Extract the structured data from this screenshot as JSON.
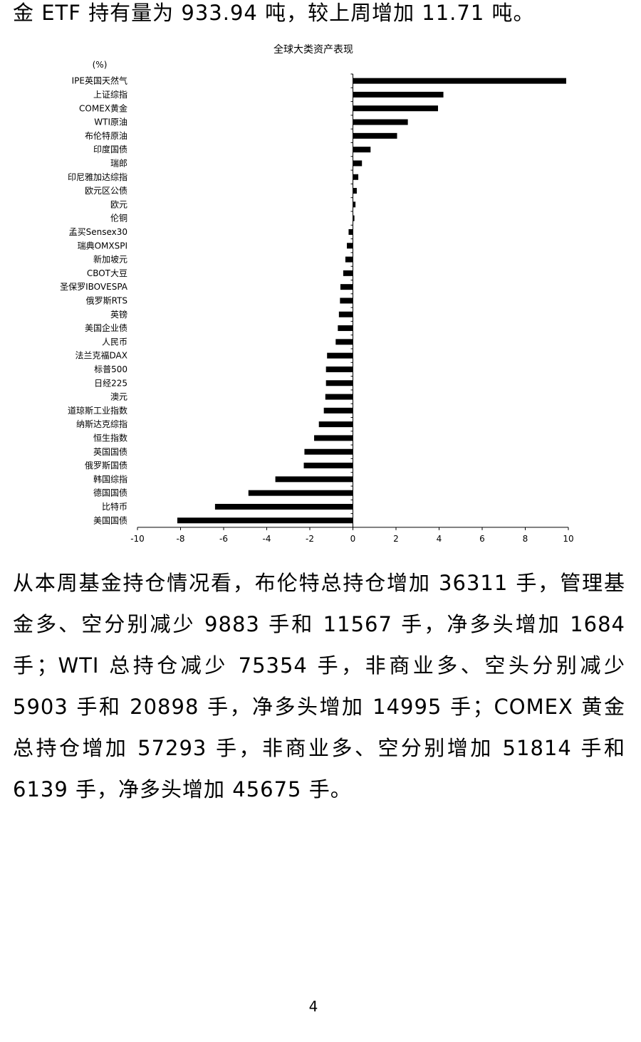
{
  "intro_line": "金 ETF 持有量为 933.94 吨，较上周增加 11.71 吨。",
  "paragraph": "从本周基金持仓情况看，布伦特总持仓增加 36311 手，管理基金多、空分别减少 9883 手和 11567 手，净多头增加 1684 手；WTI 总持仓减少 75354 手，非商业多、空头分别减少 5903 手和 20898 手，净多头增加 14995 手；COMEX 黄金总持仓增加 57293 手，非商业多、空分别增加 51814 手和 6139 手，净多头增加 45675 手。",
  "page_number": "4",
  "chart_data": {
    "type": "bar",
    "orientation": "horizontal",
    "title": "全球大类资产表现",
    "unit_label": "(%)",
    "xlim": [
      -10,
      10
    ],
    "xticks": [
      -10,
      -8,
      -6,
      -4,
      -2,
      0,
      2,
      4,
      6,
      8,
      10
    ],
    "bar_color": "#000000",
    "categories": [
      "IPE英国天然气",
      "上证综指",
      "COMEX黄金",
      "WTI原油",
      "布伦特原油",
      "印度国债",
      "瑞郎",
      "印尼雅加达综指",
      "欧元区公债",
      "欧元",
      "伦铜",
      "孟买Sensex30",
      "瑞典OMXSPI",
      "新加坡元",
      "CBOT大豆",
      "圣保罗IBOVESPA",
      "俄罗斯RTS",
      "英镑",
      "美国企业债",
      "人民币",
      "法兰克福DAX",
      "标普500",
      "日经225",
      "澳元",
      "道琼斯工业指数",
      "纳斯达克综指",
      "恒生指数",
      "英国国债",
      "俄罗斯国债",
      "韩国综指",
      "德国国债",
      "比特币",
      "美国国债"
    ],
    "values": [
      9.9,
      4.2,
      3.95,
      2.55,
      2.05,
      0.82,
      0.42,
      0.25,
      0.18,
      0.12,
      0.07,
      -0.2,
      -0.28,
      -0.35,
      -0.45,
      -0.58,
      -0.6,
      -0.65,
      -0.7,
      -0.8,
      -1.2,
      -1.25,
      -1.25,
      -1.28,
      -1.35,
      -1.58,
      -1.8,
      -2.25,
      -2.28,
      -3.6,
      -4.85,
      -6.4,
      -8.15
    ]
  }
}
